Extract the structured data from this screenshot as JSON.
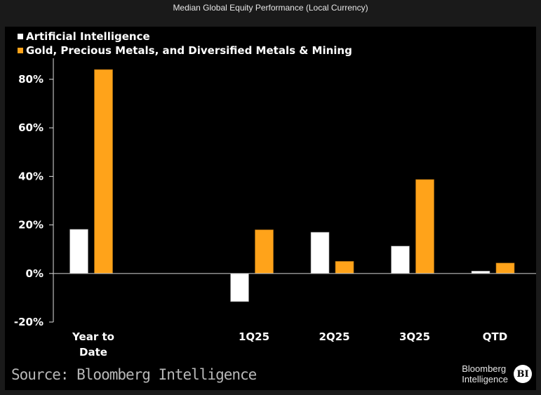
{
  "chart_data": {
    "type": "bar",
    "title": "Median Global Equity Performance (Local Currency)",
    "categories": [
      "Year to Date",
      "",
      "1Q25",
      "2Q25",
      "3Q25",
      "QTD"
    ],
    "series": [
      {
        "name": "Artificial Intelligence",
        "color": "#ffffff",
        "values": [
          18.2,
          null,
          -11.6,
          17.0,
          11.3,
          1.0
        ]
      },
      {
        "name": "Gold, Precious Metals, and Diversified Metals & Mining",
        "color": "#ffa31a",
        "values": [
          84.0,
          null,
          18.0,
          5.0,
          38.7,
          4.3
        ]
      }
    ],
    "xlabel": "",
    "ylabel": "",
    "ylim": [
      -20,
      80
    ],
    "yticks": [
      -20,
      0,
      20,
      40,
      60,
      80
    ],
    "ytick_labels": [
      "-20%",
      "0%",
      "20%",
      "40%",
      "60%",
      "80%"
    ],
    "grid": false,
    "legend_position": "top-left",
    "source": "Source: Bloomberg Intelligence"
  },
  "branding": {
    "line1": "Bloomberg",
    "line2": "Intelligence",
    "badge": "BI"
  }
}
